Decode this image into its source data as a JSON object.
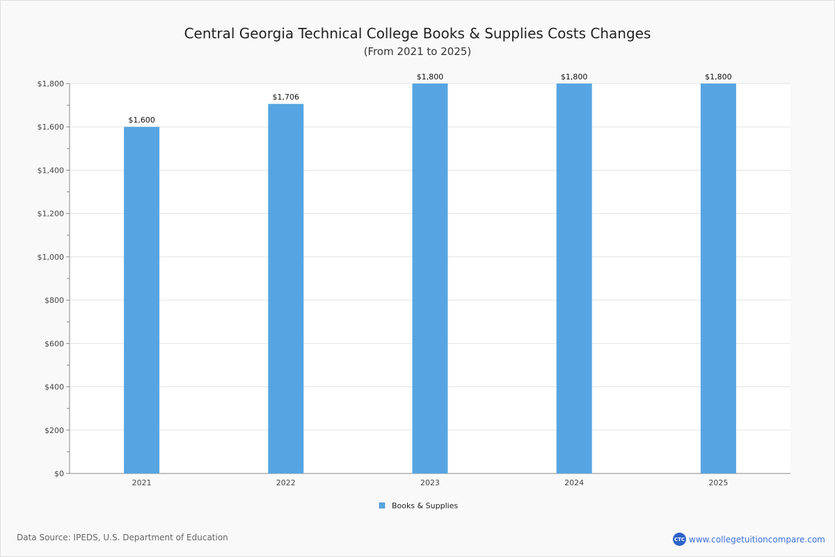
{
  "chart_data": {
    "type": "bar",
    "title": "Central Georgia Technical College Books & Supplies Costs Changes",
    "subtitle": "(From 2021 to 2025)",
    "categories": [
      "2021",
      "2022",
      "2023",
      "2024",
      "2025"
    ],
    "series": [
      {
        "name": "Books & Supplies",
        "values": [
          1600,
          1706,
          1800,
          1800,
          1800
        ],
        "color": "#56a5e2"
      }
    ],
    "data_labels": [
      "$1,600",
      "$1,706",
      "$1,800",
      "$1,800",
      "$1,800"
    ],
    "ylim": [
      0,
      1800
    ],
    "yticks": [
      0,
      200,
      400,
      600,
      800,
      1000,
      1200,
      1400,
      1600,
      1800
    ],
    "ytick_labels": [
      "$0",
      "$200",
      "$400",
      "$600",
      "$800",
      "$1,000",
      "$1,200",
      "$1,400",
      "$1,600",
      "$1,800"
    ],
    "grid": true,
    "legend_position": "bottom"
  },
  "footer": {
    "source": "Data Source: IPEDS, U.S. Department of Education",
    "brand_logo": "CTC",
    "brand_url": "www.collegetuitioncompare.com"
  }
}
